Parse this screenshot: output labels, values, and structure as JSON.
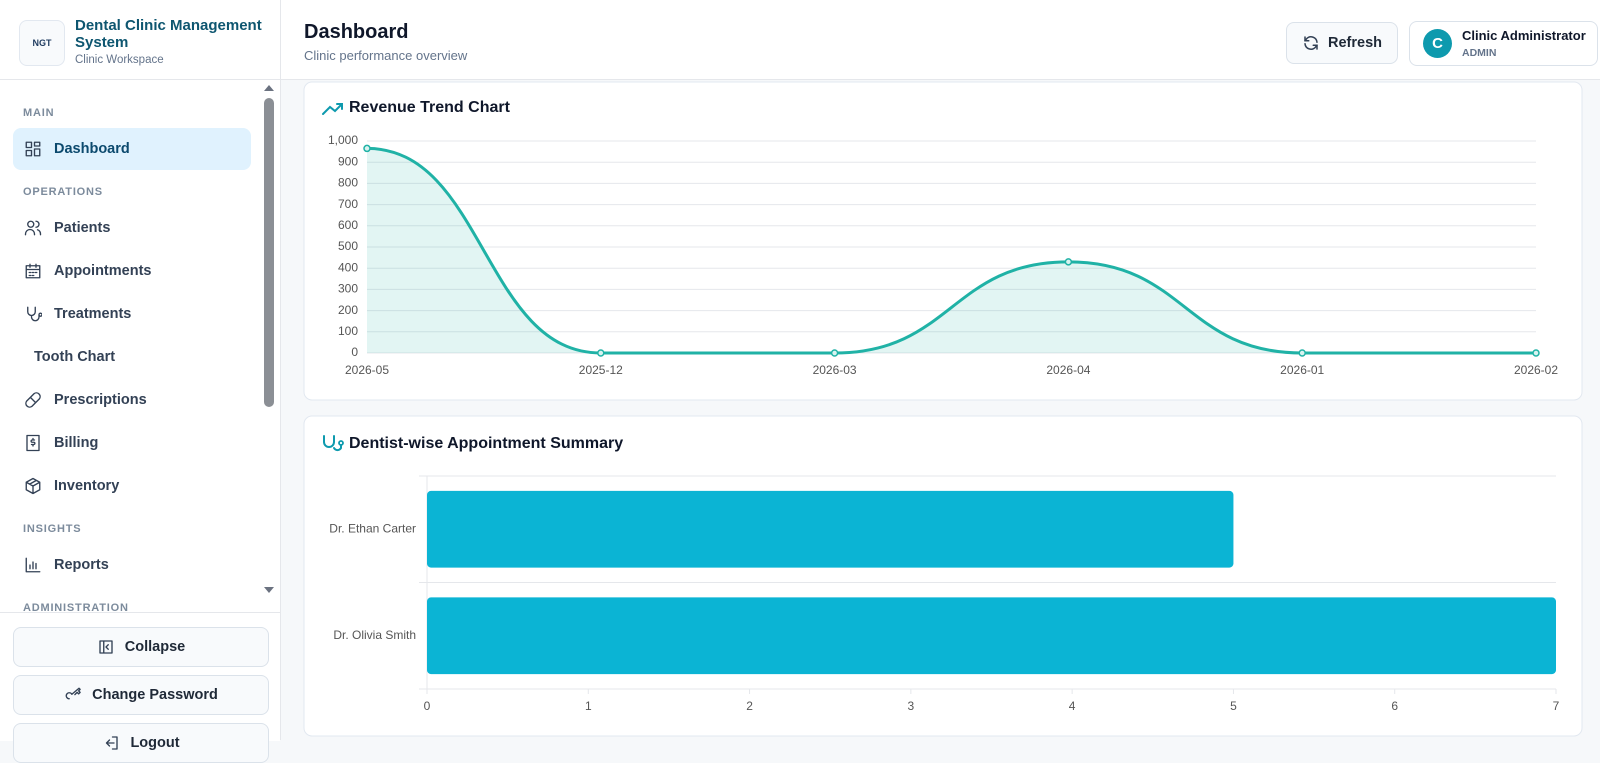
{
  "sidebar": {
    "logo": "NGT",
    "title": "Dental Clinic Management System",
    "subtitle": "Clinic Workspace",
    "sections": [
      {
        "label": "MAIN",
        "items": [
          "Dashboard"
        ]
      },
      {
        "label": "OPERATIONS",
        "items": [
          "Patients",
          "Appointments",
          "Treatments",
          "Tooth Chart",
          "Prescriptions",
          "Billing",
          "Inventory"
        ]
      },
      {
        "label": "INSIGHTS",
        "items": [
          "Reports"
        ]
      },
      {
        "label": "ADMINISTRATION"
      }
    ],
    "buttons": [
      "Collapse",
      "Change Password",
      "Logout"
    ]
  },
  "header": {
    "title": "Dashboard",
    "subtitle": "Clinic performance overview",
    "refresh": "Refresh",
    "user": {
      "initial": "C",
      "name": "Clinic Administrator",
      "role": "ADMIN"
    }
  },
  "chart_data": [
    {
      "type": "line",
      "title": "Revenue Trend Chart",
      "area": true,
      "smooth": true,
      "color": "#20b2a6",
      "categories": [
        "2026-05",
        "2025-12",
        "2026-03",
        "2026-04",
        "2026-01",
        "2026-02"
      ],
      "values": [
        965,
        0,
        0,
        430,
        0,
        0
      ],
      "ylim": [
        0,
        1000
      ],
      "yticks": [
        0,
        100,
        200,
        300,
        400,
        500,
        600,
        700,
        800,
        900,
        {
          "value": 1000,
          "label": "1,000"
        }
      ],
      "grid": true
    },
    {
      "type": "bar",
      "orientation": "horizontal",
      "title": "Dentist-wise Appointment Summary",
      "color": "#0bb4d4",
      "categories": [
        "Dr. Ethan Carter",
        "Dr. Olivia Smith"
      ],
      "values": [
        5,
        7
      ],
      "xlim": [
        0,
        7
      ],
      "xticks": [
        0,
        1,
        2,
        3,
        4,
        5,
        6,
        7
      ]
    }
  ]
}
